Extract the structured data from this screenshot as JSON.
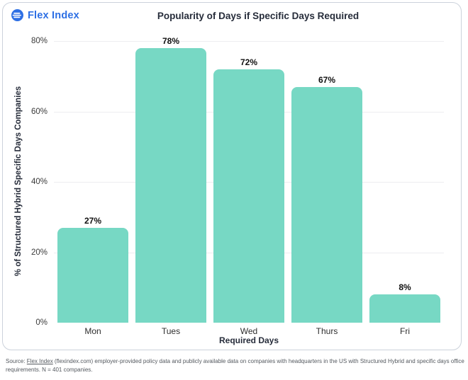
{
  "brand": {
    "name": "Flex Index",
    "color": "#2d6fe4"
  },
  "chart_data": {
    "type": "bar",
    "title": "Popularity of Days if Specific Days Required",
    "categories": [
      "Mon",
      "Tues",
      "Wed",
      "Thurs",
      "Fri"
    ],
    "values": [
      27,
      78,
      72,
      67,
      8
    ],
    "labels": [
      "27%",
      "78%",
      "72%",
      "67%",
      "8%"
    ],
    "xlabel": "Required Days",
    "ylabel": "% of Structured Hybrid Specific Days Companies",
    "ylim": [
      0,
      80
    ],
    "yticks": [
      "0%",
      "20%",
      "40%",
      "60%",
      "80%"
    ],
    "ytick_values": [
      0,
      20,
      40,
      60,
      80
    ],
    "bar_color": "#77d8c4",
    "grid": true,
    "legend": false
  },
  "footer": {
    "source_prefix": "Source: ",
    "source_link": "Flex Index",
    "source_rest": " (flexindex.com) employer-provided policy data and publicly available data on companies with headquarters in the US with Structured Hybrid and specific days office requirements. N = 401 companies."
  }
}
